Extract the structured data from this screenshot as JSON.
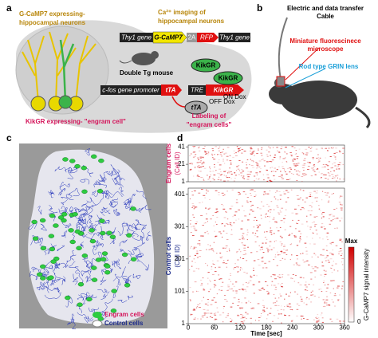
{
  "panel_labels": [
    "a",
    "b",
    "c",
    "d"
  ],
  "panel_a": {
    "title_left": [
      "G-CaMP7 expressing-",
      "hippocampal neurons"
    ],
    "title_right": [
      "Ca²⁺ imaging of",
      "hippocampal neurons"
    ],
    "construct_1": [
      "Thy1 gene",
      "G-CaMP7",
      "2A",
      "RFP",
      "Thy1 gene"
    ],
    "mouse_label": "Double Tg mouse",
    "construct_2": [
      "c-fos gene promoter",
      "tTA",
      "TRE",
      "KikGR"
    ],
    "proteins": [
      "KikGR",
      "KikGR",
      "tTA"
    ],
    "dox": [
      "OFF Dox",
      "ON Dox"
    ],
    "labeling": [
      "Labeling of",
      "\"engram cells\""
    ],
    "engram_caption": "KikGR expressing- \"engram cell\""
  },
  "panel_b": {
    "cable": [
      "Electric and data transfer",
      "Cable"
    ],
    "microscope": [
      "Miniature fluorescinece",
      "microscope"
    ],
    "lens": "Rod type GRIN lens"
  },
  "panel_c": {
    "legend": [
      "Engram cells",
      "Control cells"
    ]
  },
  "panel_d": {
    "xlabel": "Time [sec]",
    "xlim": [
      0,
      360
    ],
    "xticks": [
      0,
      60,
      120,
      180,
      240,
      300,
      360
    ],
    "engram": {
      "label": "Engram cells",
      "unit": "(Cell ID)",
      "ylim": [
        1,
        43
      ],
      "yticks": [
        1,
        21,
        41
      ]
    },
    "control": {
      "label": "Control cells",
      "unit": "(Cell ID)",
      "ylim": [
        1,
        420
      ],
      "yticks": [
        1,
        101,
        201,
        301,
        401
      ]
    },
    "colorbar": {
      "max": "Max",
      "min": 0,
      "label": "G-CaMP7 signal intensity"
    }
  }
}
